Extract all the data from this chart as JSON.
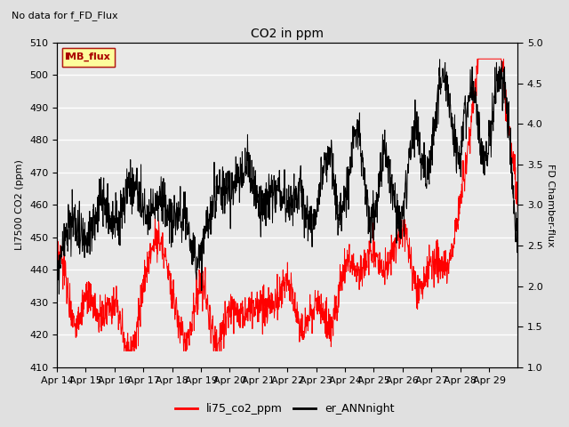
{
  "title": "CO2 in ppm",
  "subtitle": "No data for f_FD_Flux",
  "ylabel_left": "LI7500 CO2 (ppm)",
  "ylabel_right": "FD Chamber-flux",
  "ylim_left": [
    410,
    510
  ],
  "ylim_right": [
    1.0,
    5.0
  ],
  "yticks_left": [
    410,
    420,
    430,
    440,
    450,
    460,
    470,
    480,
    490,
    500,
    510
  ],
  "yticks_right": [
    1.0,
    1.5,
    2.0,
    2.5,
    3.0,
    3.5,
    4.0,
    4.5,
    5.0
  ],
  "xtick_labels": [
    "Apr 14",
    "Apr 15",
    "Apr 16",
    "Apr 17",
    "Apr 18",
    "Apr 19",
    "Apr 20",
    "Apr 21",
    "Apr 22",
    "Apr 23",
    "Apr 24",
    "Apr 25",
    "Apr 26",
    "Apr 27",
    "Apr 28",
    "Apr 29"
  ],
  "legend_entries": [
    "li75_co2_ppm",
    "er_ANNnight"
  ],
  "line_colors": [
    "red",
    "black"
  ],
  "MB_flux_box_color": "#ffff99",
  "MB_flux_text_color": "#aa0000",
  "background_color": "#e0e0e0",
  "plot_bg_color": "#e8e8e8",
  "grid_color": "#ffffff",
  "n_days": 16,
  "n_per_day": 96
}
